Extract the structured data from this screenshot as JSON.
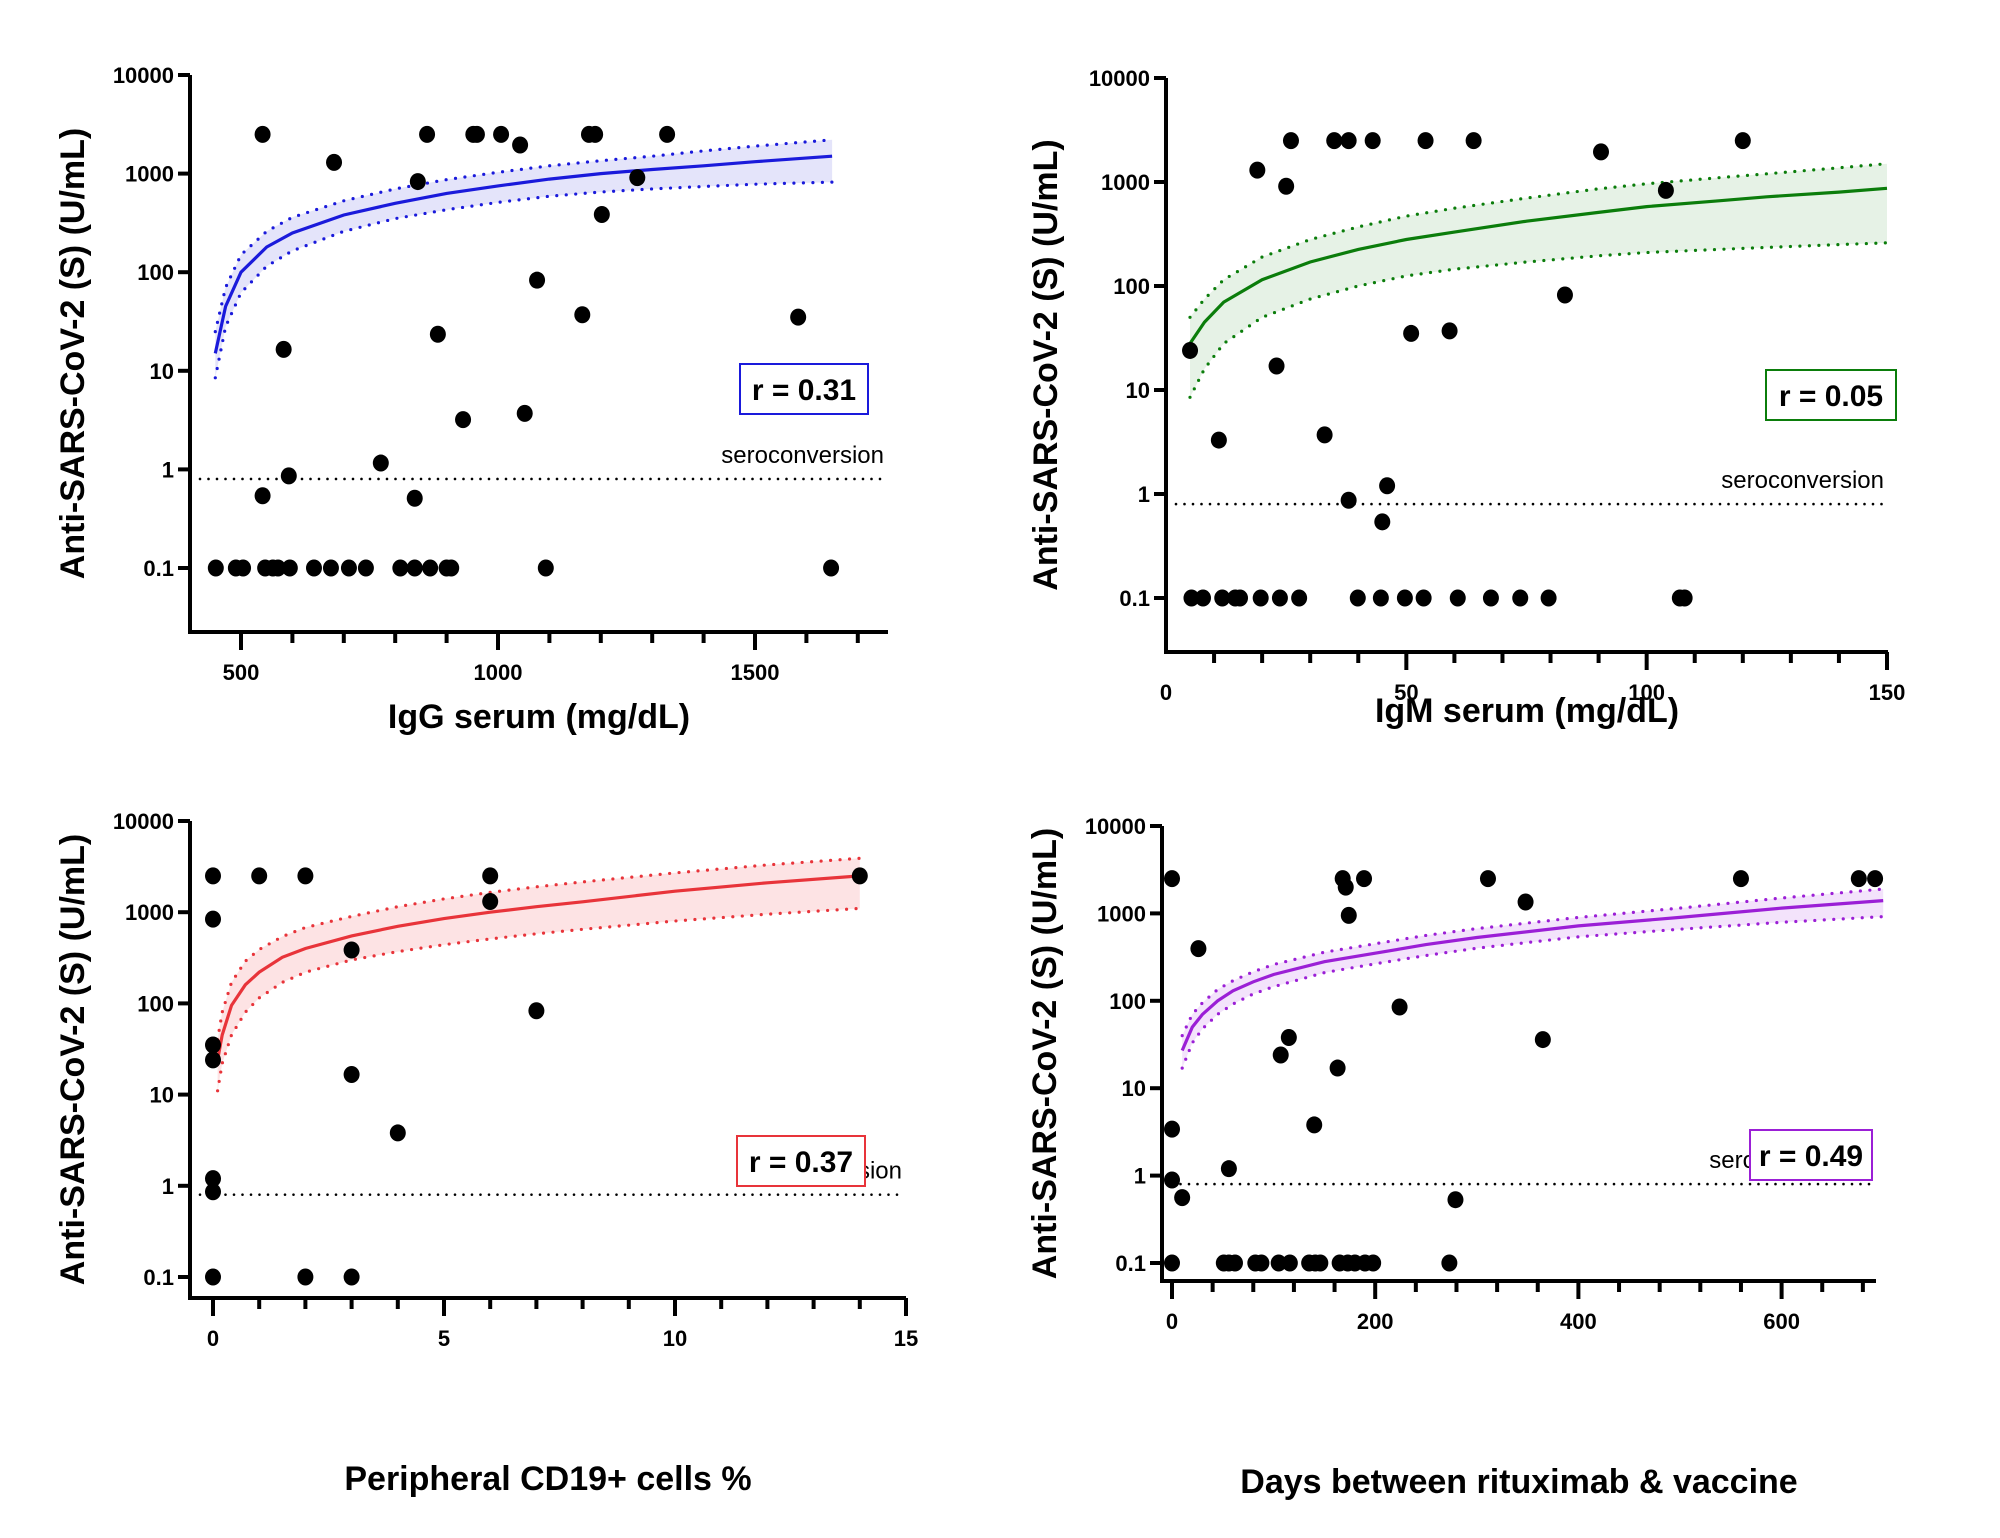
{
  "chart_data": [
    {
      "type": "scatter",
      "panel": "top-left",
      "title": "",
      "xlabel": "IgG serum (mg/dL)",
      "ylabel": "Anti-SARS-CoV-2 (S) (U/mL)",
      "xlim": [
        400,
        1750
      ],
      "ylim": [
        0.05,
        10000
      ],
      "yscale": "log",
      "xticks": [
        500,
        1000,
        1500
      ],
      "xticklabels": [
        "500",
        "1000",
        "1500"
      ],
      "xminor_step": 100,
      "yticks": [
        0.1,
        1,
        10,
        100,
        1000,
        10000
      ],
      "yticklabels": [
        "0.1",
        "1",
        "10",
        "100",
        "1000",
        "10000"
      ],
      "color": "#1a1adb",
      "band_color": "#e4e4fa",
      "correlation_label": "r = 0.31",
      "correlation_position": "middle-right",
      "reference_line": {
        "value": 0.8,
        "label": "seroconversion",
        "style": "dotted"
      },
      "points": [
        [
          542,
          2500
        ],
        [
          862,
          2500
        ],
        [
          952,
          2500
        ],
        [
          959,
          2500
        ],
        [
          1006,
          2500
        ],
        [
          1043,
          1950
        ],
        [
          1177,
          2500
        ],
        [
          1189,
          2500
        ],
        [
          1329,
          2500
        ],
        [
          681,
          1300
        ],
        [
          844,
          830
        ],
        [
          1271,
          910
        ],
        [
          1202,
          385
        ],
        [
          1076,
          83
        ],
        [
          1164,
          37
        ],
        [
          1584,
          35
        ],
        [
          583,
          16.5
        ],
        [
          883,
          23.5
        ],
        [
          932,
          3.2
        ],
        [
          1052,
          3.7
        ],
        [
          772,
          1.16
        ],
        [
          593,
          0.86
        ],
        [
          542,
          0.54
        ],
        [
          838,
          0.51
        ],
        [
          451,
          0.1
        ],
        [
          490,
          0.1
        ],
        [
          504,
          0.1
        ],
        [
          547,
          0.1
        ],
        [
          562,
          0.1
        ],
        [
          572,
          0.1
        ],
        [
          595,
          0.1
        ],
        [
          642,
          0.1
        ],
        [
          675,
          0.1
        ],
        [
          710,
          0.1
        ],
        [
          743,
          0.1
        ],
        [
          810,
          0.1
        ],
        [
          838,
          0.1
        ],
        [
          868,
          0.1
        ],
        [
          900,
          0.1
        ],
        [
          909,
          0.1
        ],
        [
          1093,
          0.1
        ],
        [
          1648,
          0.1
        ]
      ],
      "fit": {
        "x": [
          450,
          470,
          500,
          550,
          600,
          700,
          800,
          900,
          1000,
          1100,
          1200,
          1300,
          1400,
          1500,
          1650
        ],
        "y": [
          15,
          45,
          100,
          180,
          250,
          380,
          500,
          630,
          750,
          880,
          1000,
          1100,
          1200,
          1320,
          1500
        ],
        "upper": [
          25,
          70,
          150,
          260,
          360,
          530,
          700,
          870,
          1030,
          1200,
          1350,
          1500,
          1700,
          1900,
          2200
        ],
        "lower": [
          8.5,
          28,
          62,
          115,
          165,
          260,
          350,
          430,
          510,
          590,
          650,
          700,
          740,
          780,
          820
        ]
      }
    },
    {
      "type": "scatter",
      "panel": "top-right",
      "title": "",
      "xlabel": "IgM serum (mg/dL)",
      "ylabel": "Anti-SARS-CoV-2 (S) (U/mL)",
      "xlim": [
        0,
        150
      ],
      "ylim": [
        0.05,
        10000
      ],
      "yscale": "log",
      "xticks": [
        0,
        50,
        100,
        150
      ],
      "xticklabels": [
        "0",
        "50",
        "100",
        "150"
      ],
      "xminor_step": 10,
      "yticks": [
        0.1,
        1,
        10,
        100,
        1000,
        10000
      ],
      "yticklabels": [
        "0.1",
        "1",
        "10",
        "100",
        "1000",
        "10000"
      ],
      "color": "#0b7d0b",
      "band_color": "#e6f2e6",
      "correlation_label": "r = 0.05",
      "correlation_position": "middle-right",
      "reference_line": {
        "value": 0.8,
        "label": "seroconversion",
        "style": "dotted"
      },
      "points": [
        [
          5,
          24
        ],
        [
          23,
          17
        ],
        [
          11,
          3.3
        ],
        [
          33,
          3.7
        ],
        [
          38,
          0.87
        ],
        [
          46,
          1.2
        ],
        [
          45,
          0.54
        ],
        [
          19,
          1300
        ],
        [
          25,
          910
        ],
        [
          26,
          2500
        ],
        [
          35,
          2500
        ],
        [
          38,
          2500
        ],
        [
          43,
          2500
        ],
        [
          54,
          2500
        ],
        [
          64,
          2500
        ],
        [
          90.5,
          1950
        ],
        [
          120,
          2500
        ],
        [
          104,
          830
        ],
        [
          83,
          82
        ],
        [
          51,
          35
        ],
        [
          59,
          37
        ],
        [
          5.3,
          0.1
        ],
        [
          7.7,
          0.1
        ],
        [
          11.7,
          0.1
        ],
        [
          14.4,
          0.1
        ],
        [
          15.4,
          0.1
        ],
        [
          19.7,
          0.1
        ],
        [
          23.7,
          0.1
        ],
        [
          27.7,
          0.1
        ],
        [
          39.9,
          0.1
        ],
        [
          44.7,
          0.1
        ],
        [
          49.7,
          0.1
        ],
        [
          53.6,
          0.1
        ],
        [
          60.7,
          0.1
        ],
        [
          67.6,
          0.1
        ],
        [
          73.7,
          0.1
        ],
        [
          79.6,
          0.1
        ],
        [
          106.9,
          0.1
        ],
        [
          107.9,
          0.1
        ]
      ],
      "fit": {
        "x": [
          5,
          8,
          12,
          20,
          30,
          40,
          50,
          60,
          75,
          90,
          100,
          115,
          125,
          140,
          150
        ],
        "y": [
          28,
          45,
          70,
          115,
          170,
          225,
          280,
          330,
          420,
          510,
          580,
          660,
          720,
          800,
          870
        ],
        "upper": [
          50,
          75,
          115,
          190,
          280,
          370,
          470,
          560,
          700,
          860,
          960,
          1100,
          1200,
          1370,
          1500
        ],
        "lower": [
          8.5,
          16,
          28,
          50,
          75,
          100,
          125,
          145,
          170,
          195,
          210,
          225,
          235,
          250,
          260
        ]
      }
    },
    {
      "type": "scatter",
      "panel": "bottom-left",
      "title": "",
      "xlabel": "Peripheral CD19+ cells %",
      "ylabel": "Anti-SARS-CoV-2 (S) (U/mL)",
      "xlim": [
        -0.4,
        15
      ],
      "ylim": [
        0.05,
        10000
      ],
      "yscale": "log",
      "xticks": [
        0,
        5,
        10,
        15
      ],
      "xticklabels": [
        "0",
        "5",
        "10",
        "15"
      ],
      "xminor_step": 1,
      "yticks": [
        0.1,
        1,
        10,
        100,
        1000,
        10000
      ],
      "yticklabels": [
        "0.1",
        "1",
        "10",
        "100",
        "1000",
        "10000"
      ],
      "color": "#e8343a",
      "band_color": "#fde3e4",
      "correlation_label": "r = 0.37",
      "correlation_position": "middle-right",
      "reference_line": {
        "value": 0.8,
        "label": "seroconversion",
        "style": "dotted"
      },
      "points": [
        [
          0,
          2500
        ],
        [
          1,
          2500
        ],
        [
          2,
          2500
        ],
        [
          6,
          2500
        ],
        [
          14,
          2500
        ],
        [
          6,
          1310
        ],
        [
          0,
          840
        ],
        [
          3,
          385
        ],
        [
          7,
          83
        ],
        [
          0,
          35
        ],
        [
          0,
          24
        ],
        [
          3,
          16.6
        ],
        [
          4,
          3.8
        ],
        [
          0,
          1.2
        ],
        [
          0,
          0.86
        ],
        [
          0,
          0.1
        ],
        [
          2,
          0.1
        ],
        [
          3,
          0.1
        ]
      ],
      "fit": {
        "x": [
          0.1,
          0.2,
          0.4,
          0.7,
          1,
          1.5,
          2,
          3,
          4,
          5,
          6,
          7,
          8,
          10,
          12,
          14
        ],
        "y": [
          24,
          45,
          95,
          160,
          220,
          320,
          400,
          550,
          700,
          850,
          1000,
          1150,
          1300,
          1700,
          2100,
          2500
        ],
        "upper": [
          40,
          80,
          170,
          290,
          390,
          540,
          680,
          900,
          1150,
          1400,
          1650,
          1900,
          2150,
          2700,
          3300,
          3900
        ],
        "lower": [
          11,
          22,
          45,
          80,
          115,
          170,
          220,
          300,
          370,
          440,
          510,
          580,
          650,
          800,
          950,
          1100
        ]
      }
    },
    {
      "type": "scatter",
      "panel": "bottom-right",
      "title": "",
      "xlabel": "Days between rituximab & vaccine",
      "ylabel": "Anti-SARS-CoV-2 (S) (U/mL)",
      "xlim": [
        0,
        700
      ],
      "ylim": [
        0.05,
        10000
      ],
      "yscale": "log",
      "xticks": [
        0,
        200,
        400,
        600
      ],
      "xticklabels": [
        "0",
        "200",
        "400",
        "600"
      ],
      "xminor_step": 40,
      "yticks": [
        0.1,
        1,
        10,
        100,
        1000,
        10000
      ],
      "yticklabels": [
        "0.1",
        "1",
        "10",
        "100",
        "1000",
        "10000"
      ],
      "color": "#9b1fd6",
      "band_color": "#f3e3fb",
      "correlation_label": "r = 0.49",
      "correlation_position": "middle-right",
      "reference_line": {
        "value": 0.8,
        "label": "seroconversion",
        "style": "dotted"
      },
      "points": [
        [
          0,
          2500
        ],
        [
          168,
          2500
        ],
        [
          189,
          2500
        ],
        [
          311,
          2500
        ],
        [
          560,
          2500
        ],
        [
          676,
          2500
        ],
        [
          692,
          2500
        ],
        [
          171,
          2000
        ],
        [
          348,
          1350
        ],
        [
          174,
          950
        ],
        [
          26,
          395
        ],
        [
          224,
          85
        ],
        [
          115,
          38
        ],
        [
          365,
          36
        ],
        [
          107,
          24
        ],
        [
          163,
          17
        ],
        [
          140,
          3.8
        ],
        [
          0,
          3.4
        ],
        [
          56,
          1.2
        ],
        [
          0,
          0.89
        ],
        [
          10,
          0.56
        ],
        [
          279,
          0.53
        ],
        [
          0,
          0.1
        ],
        [
          51,
          0.1
        ],
        [
          56,
          0.1
        ],
        [
          62,
          0.1
        ],
        [
          82,
          0.1
        ],
        [
          88,
          0.1
        ],
        [
          105,
          0.1
        ],
        [
          116,
          0.1
        ],
        [
          135,
          0.1
        ],
        [
          141,
          0.1
        ],
        [
          146,
          0.1
        ],
        [
          165,
          0.1
        ],
        [
          173,
          0.1
        ],
        [
          180,
          0.1
        ],
        [
          190,
          0.1
        ],
        [
          198,
          0.1
        ],
        [
          273,
          0.1
        ]
      ],
      "fit": {
        "x": [
          10,
          20,
          30,
          45,
          60,
          80,
          100,
          150,
          200,
          250,
          300,
          400,
          500,
          600,
          700
        ],
        "y": [
          27,
          50,
          70,
          100,
          130,
          165,
          200,
          280,
          350,
          440,
          530,
          720,
          900,
          1150,
          1400
        ],
        "upper": [
          40,
          70,
          95,
          135,
          170,
          215,
          260,
          360,
          450,
          560,
          670,
          900,
          1150,
          1500,
          1900
        ],
        "lower": [
          17,
          33,
          48,
          70,
          92,
          120,
          145,
          210,
          265,
          330,
          400,
          540,
          660,
          790,
          920
        ]
      }
    }
  ]
}
